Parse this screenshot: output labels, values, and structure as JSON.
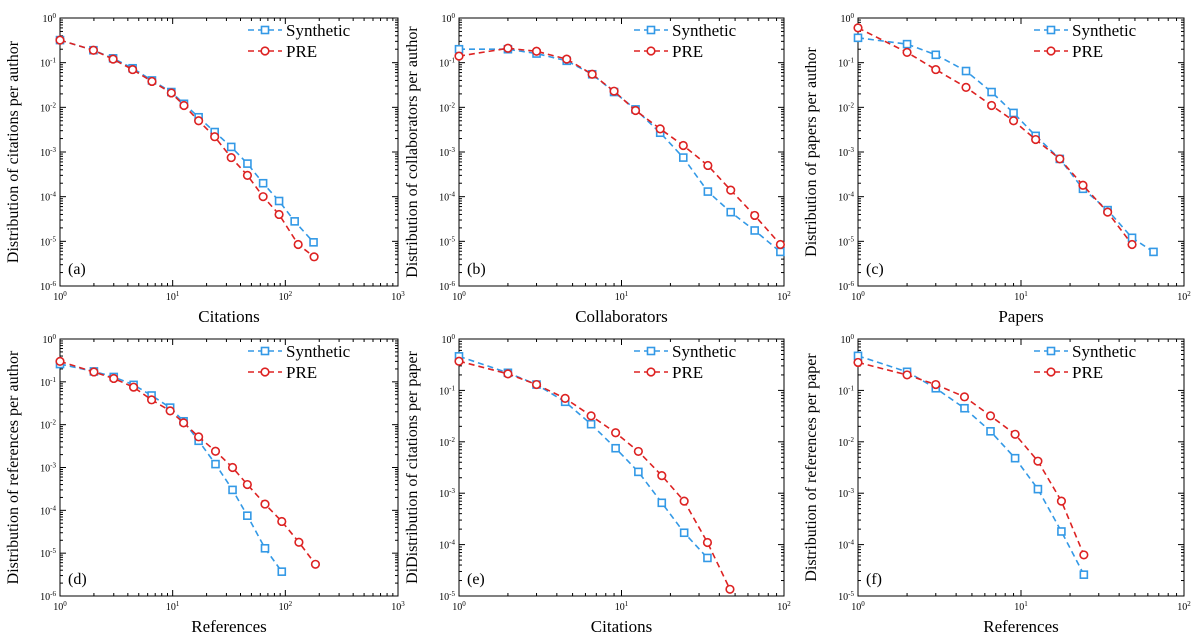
{
  "figure": {
    "legend_labels": [
      "Synthetic",
      "PRE"
    ],
    "colors": {
      "synthetic": "#3399e6",
      "pre": "#dd2222",
      "axis": "#000000",
      "background": "#ffffff"
    },
    "markers": {
      "synthetic": "square",
      "pre": "circle"
    },
    "line_style": "dashed"
  },
  "chart_data": [
    {
      "panel": "(a)",
      "type": "line",
      "xlabel": "Citations",
      "ylabel": "Distribution of citations per author",
      "xscale": "log",
      "yscale": "log",
      "xlim": [
        1,
        1000
      ],
      "ylim": [
        1e-06,
        1
      ],
      "x_ticks": [
        1,
        10,
        100,
        1000
      ],
      "y_ticks": [
        1e-06,
        1e-05,
        0.0001,
        0.001,
        0.01,
        0.1,
        1
      ],
      "legend_position": "top-right",
      "grid": false,
      "series": [
        {
          "name": "Synthetic",
          "x": [
            1,
            1.98,
            2.96,
            4.41,
            6.55,
            9.73,
            12.6,
            17.0,
            23.6,
            33.1,
            46.1,
            63.5,
            88.0,
            121,
            178
          ],
          "y": [
            0.32,
            0.19,
            0.125,
            0.075,
            0.04,
            0.022,
            0.012,
            0.006,
            0.0028,
            0.0013,
            0.00055,
            0.0002,
            8e-05,
            2.8e-05,
            9.5e-06
          ]
        },
        {
          "name": "PRE",
          "x": [
            1,
            1.98,
            2.96,
            4.41,
            6.55,
            9.73,
            12.6,
            17.0,
            23.6,
            33.1,
            46.1,
            63.5,
            88.0,
            130,
            180
          ],
          "y": [
            0.32,
            0.19,
            0.12,
            0.07,
            0.038,
            0.021,
            0.011,
            0.005,
            0.0022,
            0.00075,
            0.0003,
            0.0001,
            4e-05,
            8.5e-06,
            4.5e-06
          ]
        }
      ]
    },
    {
      "panel": "(b)",
      "type": "line",
      "xlabel": "Collaborators",
      "ylabel": "Distribution of collaborators per author",
      "xscale": "log",
      "yscale": "log",
      "xlim": [
        1,
        100
      ],
      "ylim": [
        1e-06,
        1
      ],
      "x_ticks": [
        1,
        10,
        100
      ],
      "y_ticks": [
        1e-06,
        1e-05,
        0.0001,
        0.001,
        0.01,
        0.1,
        1
      ],
      "legend_position": "top-right",
      "grid": false,
      "series": [
        {
          "name": "Synthetic",
          "x": [
            1,
            2,
            3,
            4.6,
            6.6,
            9,
            12.2,
            17.3,
            24,
            34,
            47,
            66,
            95
          ],
          "y": [
            0.2,
            0.2,
            0.16,
            0.11,
            0.055,
            0.022,
            0.009,
            0.0027,
            0.00075,
            0.00013,
            4.5e-05,
            1.75e-05,
            5.8e-06
          ]
        },
        {
          "name": "PRE",
          "x": [
            1,
            2,
            3,
            4.6,
            6.6,
            9,
            12.2,
            17.3,
            24,
            34,
            47,
            66,
            95
          ],
          "y": [
            0.14,
            0.21,
            0.18,
            0.12,
            0.055,
            0.023,
            0.0085,
            0.0033,
            0.0014,
            0.0005,
            0.00014,
            3.8e-05,
            8.5e-06
          ]
        }
      ]
    },
    {
      "panel": "(c)",
      "type": "line",
      "xlabel": "Papers",
      "ylabel": "Distribution of papers per author",
      "xscale": "log",
      "yscale": "log",
      "xlim": [
        1,
        100
      ],
      "ylim": [
        1e-06,
        1
      ],
      "x_ticks": [
        1,
        10,
        100
      ],
      "y_ticks": [
        1e-06,
        1e-05,
        0.0001,
        0.001,
        0.01,
        0.1,
        1
      ],
      "legend_position": "top-right",
      "grid": false,
      "series": [
        {
          "name": "Synthetic",
          "x": [
            1,
            2,
            3,
            4.6,
            6.6,
            9,
            12.3,
            17.3,
            24,
            34,
            48,
            65
          ],
          "y": [
            0.36,
            0.26,
            0.15,
            0.065,
            0.022,
            0.0075,
            0.0023,
            0.0007,
            0.00015,
            5e-05,
            1.2e-05,
            5.8e-06
          ]
        },
        {
          "name": "PRE",
          "x": [
            1,
            2,
            3,
            4.6,
            6.6,
            9,
            12.3,
            17.3,
            24,
            34,
            48
          ],
          "y": [
            0.6,
            0.17,
            0.07,
            0.028,
            0.011,
            0.005,
            0.0019,
            0.0007,
            0.00018,
            4.5e-05,
            8.5e-06
          ]
        }
      ]
    },
    {
      "panel": "(d)",
      "type": "line",
      "xlabel": "References",
      "ylabel": "Distribution of references per author",
      "xscale": "log",
      "yscale": "log",
      "xlim": [
        1,
        1000
      ],
      "ylim": [
        1e-06,
        1
      ],
      "x_ticks": [
        1,
        10,
        100,
        1000
      ],
      "y_ticks": [
        1e-06,
        1e-05,
        0.0001,
        0.001,
        0.01,
        0.1,
        1
      ],
      "legend_position": "top-right",
      "grid": false,
      "series": [
        {
          "name": "Synthetic",
          "x": [
            1,
            2,
            3,
            4.5,
            6.5,
            9.5,
            12.5,
            17,
            24,
            34,
            46,
            66,
            93
          ],
          "y": [
            0.26,
            0.175,
            0.13,
            0.085,
            0.048,
            0.025,
            0.012,
            0.0042,
            0.0012,
            0.0003,
            7.5e-05,
            1.3e-05,
            3.7e-06
          ]
        },
        {
          "name": "PRE",
          "x": [
            1,
            2,
            3,
            4.5,
            6.5,
            9.5,
            12.5,
            17,
            24,
            34,
            46,
            66,
            93,
            132,
            185
          ],
          "y": [
            0.3,
            0.17,
            0.12,
            0.075,
            0.038,
            0.021,
            0.011,
            0.0052,
            0.0024,
            0.001,
            0.0004,
            0.00014,
            5.5e-05,
            1.8e-05,
            5.5e-06
          ]
        }
      ]
    },
    {
      "panel": "(e)",
      "type": "line",
      "xlabel": "Citations",
      "ylabel": "DiDistribution of citations per paper",
      "xscale": "log",
      "yscale": "log",
      "xlim": [
        1,
        100
      ],
      "ylim": [
        1e-05,
        1
      ],
      "x_ticks": [
        1,
        10,
        100
      ],
      "y_ticks": [
        1e-05,
        0.0001,
        0.001,
        0.01,
        0.1,
        1
      ],
      "legend_position": "top-right",
      "grid": false,
      "series": [
        {
          "name": "Synthetic",
          "x": [
            1,
            2,
            3,
            4.5,
            6.5,
            9.2,
            12.7,
            17.7,
            24.3,
            33.8
          ],
          "y": [
            0.46,
            0.22,
            0.13,
            0.06,
            0.022,
            0.0075,
            0.0026,
            0.00065,
            0.00017,
            5.5e-05
          ]
        },
        {
          "name": "PRE",
          "x": [
            1,
            2,
            3,
            4.5,
            6.5,
            9.2,
            12.7,
            17.7,
            24.3,
            33.8,
            46.5
          ],
          "y": [
            0.37,
            0.21,
            0.13,
            0.07,
            0.032,
            0.015,
            0.0065,
            0.0022,
            0.0007,
            0.00011,
            1.35e-05
          ]
        }
      ]
    },
    {
      "panel": "(f)",
      "type": "line",
      "xlabel": "References",
      "ylabel": "Distribution of references per paper",
      "xscale": "log",
      "yscale": "log",
      "xlim": [
        1,
        100
      ],
      "ylim": [
        1e-05,
        1
      ],
      "x_ticks": [
        1,
        10,
        100
      ],
      "y_ticks": [
        1e-05,
        0.0001,
        0.001,
        0.01,
        0.1,
        1
      ],
      "legend_position": "top-right",
      "grid": false,
      "series": [
        {
          "name": "Synthetic",
          "x": [
            1,
            2,
            3,
            4.5,
            6.5,
            9.2,
            12.7,
            17.7,
            24.3
          ],
          "y": [
            0.47,
            0.23,
            0.11,
            0.045,
            0.016,
            0.0048,
            0.0012,
            0.00018,
            2.6e-05
          ]
        },
        {
          "name": "PRE",
          "x": [
            1,
            2,
            3,
            4.5,
            6.5,
            9.2,
            12.7,
            17.7,
            24.3
          ],
          "y": [
            0.35,
            0.2,
            0.13,
            0.075,
            0.032,
            0.014,
            0.0042,
            0.0007,
            6.3e-05
          ]
        }
      ]
    }
  ]
}
